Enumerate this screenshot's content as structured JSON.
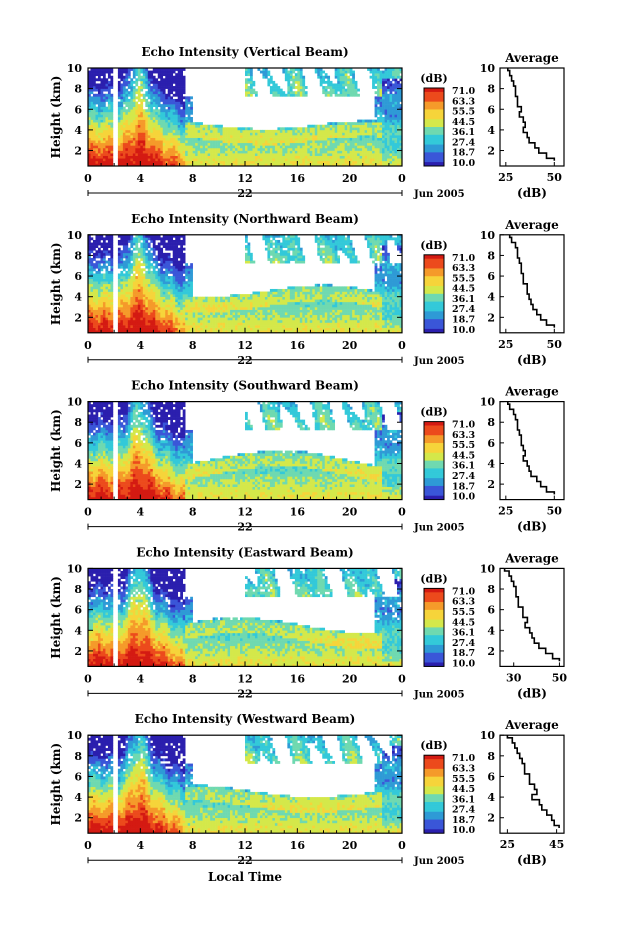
{
  "colors": {
    "scale": [
      "#2b1fae",
      "#3a56d8",
      "#2e9ad6",
      "#33c9d9",
      "#6fd9b0",
      "#d4e84a",
      "#f6d43a",
      "#f59a2a",
      "#ec4a1c",
      "#d41a12"
    ],
    "white": "#ffffff"
  },
  "chart_data": [
    {
      "type": "heatmap",
      "title": "Echo Intensity (Vertical Beam)",
      "ylabel": "Height (km)",
      "ylim": [
        0.5,
        10
      ],
      "xlim": [
        0,
        24
      ],
      "x_ticks": [
        "0",
        "4",
        "8",
        "12",
        "16",
        "20",
        "0"
      ],
      "y_ticks": [
        "2",
        "4",
        "6",
        "8",
        "10"
      ],
      "day_label": "22",
      "month_label": "Jun 2005",
      "colorbar": {
        "unit": "(dB)",
        "levels": [
          "71.0",
          "63.3",
          "55.5",
          "44.5",
          "36.1",
          "27.4",
          "18.7",
          "10.0"
        ]
      },
      "profile": {
        "title": "Average",
        "xlabel": "(dB)",
        "x_ticks": [
          "25",
          "50"
        ],
        "xlim": [
          22,
          55
        ],
        "y_ticks": [
          "2",
          "4",
          "6",
          "8",
          "10"
        ],
        "heights": [
          10,
          9.5,
          9,
          8.5,
          8,
          7.5,
          7,
          6.5,
          6,
          5.5,
          5,
          4.5,
          4,
          3.5,
          3,
          2.5,
          2,
          1.5,
          1
        ],
        "values": [
          26,
          27,
          28,
          29,
          30,
          30,
          31,
          31,
          33,
          32,
          34,
          35,
          34,
          36,
          37,
          40,
          42,
          46,
          50
        ]
      }
    },
    {
      "type": "heatmap",
      "title": "Echo Intensity (Northward Beam)",
      "ylabel": "Height (km)",
      "ylim": [
        0.5,
        10
      ],
      "xlim": [
        0,
        24
      ],
      "x_ticks": [
        "0",
        "4",
        "8",
        "12",
        "16",
        "20",
        "0"
      ],
      "y_ticks": [
        "2",
        "4",
        "6",
        "8",
        "10"
      ],
      "day_label": "22",
      "month_label": "Jun 2005",
      "colorbar": {
        "unit": "(dB)",
        "levels": [
          "71.0",
          "63.3",
          "55.5",
          "44.5",
          "36.1",
          "27.4",
          "18.7",
          "10.0"
        ]
      },
      "profile": {
        "title": "Average",
        "xlabel": "(dB)",
        "x_ticks": [
          "25",
          "50"
        ],
        "xlim": [
          22,
          55
        ],
        "y_ticks": [
          "2",
          "4",
          "6",
          "8",
          "10"
        ],
        "heights": [
          10,
          9.5,
          9,
          8.5,
          8,
          7.5,
          7,
          6.5,
          6,
          5.5,
          5,
          4.5,
          4,
          3.5,
          3,
          2.5,
          2,
          1.5,
          1
        ],
        "values": [
          27,
          28,
          30,
          31,
          31,
          32,
          33,
          33,
          34,
          34,
          36,
          36,
          37,
          38,
          39,
          41,
          43,
          46,
          50
        ]
      }
    },
    {
      "type": "heatmap",
      "title": "Echo Intensity (Southward Beam)",
      "ylabel": "Height (km)",
      "ylim": [
        0.5,
        10
      ],
      "xlim": [
        0,
        24
      ],
      "x_ticks": [
        "0",
        "4",
        "8",
        "12",
        "16",
        "20",
        "0"
      ],
      "y_ticks": [
        "2",
        "4",
        "6",
        "8",
        "10"
      ],
      "day_label": "22",
      "month_label": "Jun 2005",
      "colorbar": {
        "unit": "(dB)",
        "levels": [
          "71.0",
          "63.3",
          "55.5",
          "44.5",
          "36.1",
          "27.4",
          "18.7",
          "10.0"
        ]
      },
      "profile": {
        "title": "Average",
        "xlabel": "(dB)",
        "x_ticks": [
          "25",
          "50"
        ],
        "xlim": [
          22,
          55
        ],
        "y_ticks": [
          "2",
          "4",
          "6",
          "8",
          "10"
        ],
        "heights": [
          10,
          9.5,
          9,
          8.5,
          8,
          7.5,
          7,
          6.5,
          6,
          5.5,
          5,
          4.5,
          4,
          3.5,
          3,
          2.5,
          2,
          1.5,
          1
        ],
        "values": [
          26,
          27,
          29,
          30,
          31,
          31,
          32,
          33,
          33,
          34,
          35,
          34,
          36,
          37,
          38,
          41,
          43,
          46,
          50
        ]
      }
    },
    {
      "type": "heatmap",
      "title": "Echo Intensity (Eastward Beam)",
      "ylabel": "Height (km)",
      "ylim": [
        0.5,
        10
      ],
      "xlim": [
        0,
        24
      ],
      "x_ticks": [
        "0",
        "4",
        "8",
        "12",
        "16",
        "20",
        "0"
      ],
      "y_ticks": [
        "2",
        "4",
        "6",
        "8",
        "10"
      ],
      "day_label": "22",
      "month_label": "Jun 2005",
      "colorbar": {
        "unit": "(dB)",
        "levels": [
          "71.0",
          "63.3",
          "55.5",
          "44.5",
          "36.1",
          "27.4",
          "18.7",
          "10.0"
        ]
      },
      "profile": {
        "title": "Average",
        "xlabel": "(dB)",
        "x_ticks": [
          "30",
          "50"
        ],
        "xlim": [
          24,
          52
        ],
        "y_ticks": [
          "2",
          "4",
          "6",
          "8",
          "10"
        ],
        "heights": [
          10,
          9.5,
          9,
          8.5,
          8,
          7.5,
          7,
          6.5,
          6,
          5.5,
          5,
          4.5,
          4,
          3.5,
          3,
          2.5,
          2,
          1.5,
          1
        ],
        "values": [
          26,
          28,
          29,
          30,
          31,
          31,
          32,
          32,
          34,
          34,
          36,
          35,
          37,
          38,
          39,
          41,
          44,
          47,
          50
        ]
      }
    },
    {
      "type": "heatmap",
      "title": "Echo Intensity (Westward Beam)",
      "ylabel": "Height (km)",
      "ylim": [
        0.5,
        10
      ],
      "xlim": [
        0,
        24
      ],
      "x_ticks": [
        "0",
        "4",
        "8",
        "12",
        "16",
        "20",
        "0"
      ],
      "y_ticks": [
        "2",
        "4",
        "6",
        "8",
        "10"
      ],
      "day_label": "22",
      "month_label": "Jun 2005",
      "xlabel": "Local Time",
      "colorbar": {
        "unit": "(dB)",
        "levels": [
          "71.0",
          "63.3",
          "55.5",
          "44.5",
          "36.1",
          "27.4",
          "18.7",
          "10.0"
        ]
      },
      "profile": {
        "title": "Average",
        "xlabel": "(dB)",
        "x_ticks": [
          "25",
          "45"
        ],
        "xlim": [
          22,
          48
        ],
        "y_ticks": [
          "2",
          "4",
          "6",
          "8",
          "10"
        ],
        "heights": [
          10,
          9.5,
          9,
          8.5,
          8,
          7.5,
          7,
          6.5,
          6,
          5.5,
          5,
          4.5,
          4,
          3.5,
          3,
          2.5,
          2,
          1.5,
          1
        ],
        "values": [
          25,
          27,
          28,
          29,
          30,
          31,
          32,
          32,
          34,
          34,
          36,
          37,
          35,
          38,
          39,
          41,
          43,
          44,
          46
        ]
      }
    }
  ]
}
